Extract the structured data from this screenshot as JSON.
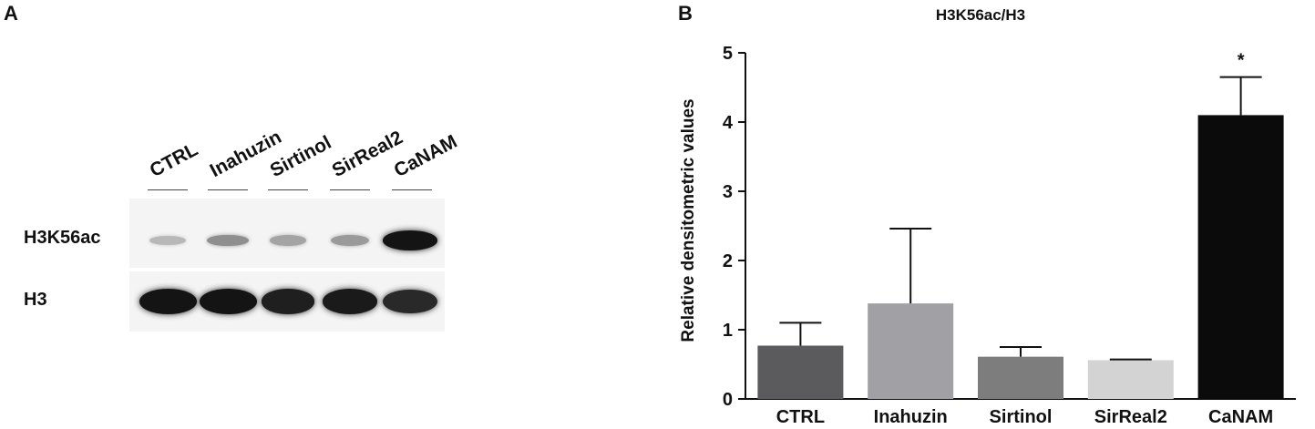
{
  "panel_a": {
    "letter": "A",
    "lanes": [
      "CTRL",
      "Inahuzin",
      "Sirtinol",
      "SirReal2",
      "CaNAM"
    ],
    "rows": [
      {
        "label": "H3K56ac",
        "intensity": [
          0.15,
          0.35,
          0.25,
          0.3,
          0.95
        ]
      },
      {
        "label": "H3",
        "intensity": [
          0.95,
          0.95,
          0.9,
          0.92,
          0.85
        ]
      }
    ]
  },
  "panel_b": {
    "letter": "B"
  },
  "chart_data": {
    "type": "bar",
    "title": "H3K56ac/H3",
    "xlabel": "",
    "ylabel": "Relative densitometric values",
    "ylim": [
      0,
      5
    ],
    "yticks": [
      "0",
      "1",
      "2",
      "3",
      "4",
      "5"
    ],
    "categories": [
      "CTRL",
      "Inahuzin",
      "Sirtinol",
      "SirReal2",
      "CaNAM"
    ],
    "values": [
      0.77,
      1.38,
      0.61,
      0.56,
      4.1
    ],
    "errors": [
      0.33,
      1.08,
      0.14,
      0.01,
      0.55
    ],
    "colors": [
      "#5b5b5d",
      "#a1a0a5",
      "#7d7d7d",
      "#d3d3d3",
      "#0b0b0b"
    ],
    "annotations": [
      {
        "category": "CaNAM",
        "text": "*"
      }
    ]
  }
}
